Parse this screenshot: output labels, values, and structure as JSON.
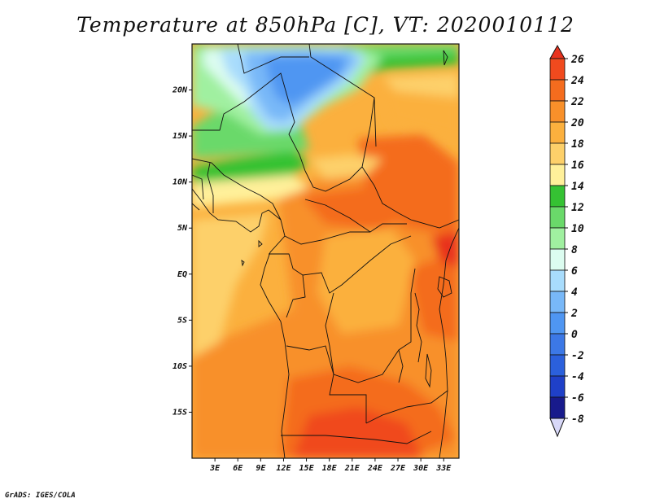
{
  "title": "Temperature at 850hPa [C], VT: 2020010112",
  "footer": "GrADS: IGES/COLA",
  "map": {
    "lat_labels": [
      "20N",
      "15N",
      "10N",
      "5N",
      "EQ",
      "5S",
      "10S",
      "15S"
    ],
    "lat_values": [
      20,
      15,
      10,
      5,
      0,
      -5,
      -10,
      -15
    ],
    "lon_labels": [
      "3E",
      "6E",
      "9E",
      "12E",
      "15E",
      "18E",
      "21E",
      "24E",
      "27E",
      "30E",
      "33E"
    ],
    "lon_values": [
      3,
      6,
      9,
      12,
      15,
      18,
      21,
      24,
      27,
      30,
      33
    ],
    "lat_range": [
      -20,
      25
    ],
    "lon_range": [
      0,
      35
    ]
  },
  "colorbar": {
    "labels": [
      "26",
      "24",
      "22",
      "20",
      "18",
      "16",
      "14",
      "12",
      "10",
      "8",
      "6",
      "4",
      "2",
      "0",
      "-2",
      "-4",
      "-6",
      "-8"
    ],
    "levels": [
      26,
      24,
      22,
      20,
      18,
      16,
      14,
      12,
      10,
      8,
      6,
      4,
      2,
      0,
      -2,
      -4,
      -6,
      -8
    ],
    "colors_top_to_bottom": [
      "#e8321e",
      "#f04a1e",
      "#f46c1e",
      "#f8902a",
      "#fbb03e",
      "#fdd06a",
      "#fff09a",
      "#35c233",
      "#6ad96a",
      "#a0f0a0",
      "#dcfcf0",
      "#a8dcfc",
      "#78b8f8",
      "#4f96f2",
      "#3c78e6",
      "#2b60dc",
      "#1f40c8",
      "#181a8c",
      "#d8d8f8"
    ]
  }
}
